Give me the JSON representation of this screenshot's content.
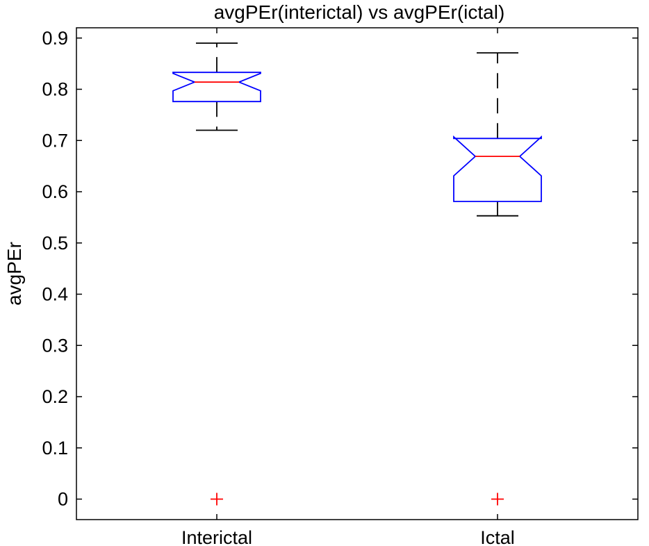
{
  "chart_data": {
    "type": "box",
    "title": "avgPEr(interictal) vs avgPEr(ictal)",
    "xlabel": "",
    "ylabel": "avgPEr",
    "ylim": [
      -0.04,
      0.92
    ],
    "yticks": [
      0,
      0.1,
      0.2,
      0.3,
      0.4,
      0.5,
      0.6,
      0.7,
      0.8,
      0.9
    ],
    "ytick_labels": [
      "0",
      "0.1",
      "0.2",
      "0.3",
      "0.4",
      "0.5",
      "0.6",
      "0.7",
      "0.8",
      "0.9"
    ],
    "categories": [
      "Interictal",
      "Ictal"
    ],
    "grid": false,
    "notched": true,
    "boxes": [
      {
        "name": "Interictal",
        "whisker_low": 0.72,
        "q1": 0.776,
        "notch_low": 0.797,
        "median": 0.814,
        "notch_high": 0.831,
        "q3": 0.833,
        "whisker_high": 0.89,
        "outliers": [
          0
        ]
      },
      {
        "name": "Ictal",
        "whisker_low": 0.553,
        "q1": 0.581,
        "notch_low": 0.631,
        "median": 0.669,
        "notch_high": 0.707,
        "q3": 0.704,
        "whisker_high": 0.871,
        "outliers": [
          0
        ]
      }
    ],
    "colors": {
      "box": "#0000ff",
      "median": "#ff0000",
      "whisker": "#000000",
      "outlier": "#ff0000"
    }
  }
}
